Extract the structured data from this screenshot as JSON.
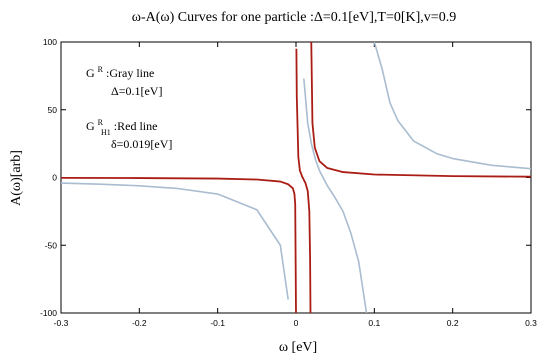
{
  "chart_data": {
    "type": "line",
    "title": "ω-A(ω) Curves for one particle :Δ=0.1[eV],T=0[K],v=0.9",
    "xlabel": "ω [eV]",
    "ylabel": "A(ω)[arb]",
    "xlim": [
      -0.3,
      0.3
    ],
    "ylim": [
      -100,
      100
    ],
    "x_ticks": [
      -0.3,
      -0.2,
      -0.1,
      0,
      0.1,
      0.2,
      0.3
    ],
    "x_tick_labels": [
      "-0.3",
      "-0.2",
      "-0.1",
      "0",
      "0.1",
      "0.2",
      "0.3"
    ],
    "y_ticks": [
      -100,
      -50,
      0,
      50,
      100
    ],
    "y_tick_labels": [
      "-100",
      "-50",
      "0",
      "50",
      "100"
    ],
    "grid": false,
    "annotations": {
      "gray_label_main": "G",
      "gray_label_sup": "R",
      "gray_label_rest": ":Gray line",
      "gray_param": "Δ=0.1[eV]",
      "red_label_main": "G",
      "red_label_sup": "R",
      "red_label_sub": "H1",
      "red_label_rest": ":Red line",
      "red_param": "δ=0.019[eV]"
    },
    "series": [
      {
        "color": "#a9bcd0",
        "points": [
          [
            -0.3,
            -4.1
          ],
          [
            -0.25,
            -4.9
          ],
          [
            -0.2,
            -6.1
          ],
          [
            -0.15,
            -8.2
          ],
          [
            -0.1,
            -12.2
          ],
          [
            -0.05,
            -23.8
          ],
          [
            -0.02,
            -50.0
          ],
          [
            -0.01,
            -90.0
          ],
          [
            0.01,
            73.0
          ],
          [
            0.015,
            40.0
          ],
          [
            0.02,
            24.0
          ],
          [
            0.025,
            13.0
          ],
          [
            0.03,
            5.0
          ],
          [
            0.04,
            -6.0
          ],
          [
            0.05,
            -15.0
          ],
          [
            0.06,
            -25.0
          ],
          [
            0.07,
            -41.0
          ],
          [
            0.08,
            -62.0
          ],
          [
            0.09,
            -100.0
          ],
          [
            0.1,
            100.0
          ],
          [
            0.11,
            80.0
          ],
          [
            0.12,
            55.0
          ],
          [
            0.13,
            42.0
          ],
          [
            0.15,
            27.0
          ],
          [
            0.18,
            17.5
          ],
          [
            0.2,
            14.0
          ],
          [
            0.25,
            9.0
          ],
          [
            0.3,
            6.5
          ]
        ]
      },
      {
        "color": "#aa1d14",
        "points": [
          [
            -0.3,
            -0.3
          ],
          [
            -0.2,
            -0.4
          ],
          [
            -0.1,
            -0.8
          ],
          [
            -0.05,
            -1.5
          ],
          [
            -0.02,
            -3.0
          ],
          [
            -0.01,
            -5.0
          ],
          [
            -0.004,
            -8.0
          ],
          [
            -0.002,
            -12.0
          ],
          [
            -0.001,
            -20.0
          ],
          [
            0.0,
            -100.0
          ],
          [
            0.0005,
            95.0
          ],
          [
            0.001,
            60.0
          ],
          [
            0.003,
            15.0
          ],
          [
            0.005,
            5.0
          ],
          [
            0.008,
            0.5
          ],
          [
            0.012,
            -4.0
          ],
          [
            0.015,
            -10.0
          ],
          [
            0.017,
            -25.0
          ],
          [
            0.018,
            -60.0
          ],
          [
            0.0185,
            -100.0
          ],
          [
            0.0195,
            100.0
          ],
          [
            0.021,
            40.0
          ],
          [
            0.024,
            22.0
          ],
          [
            0.03,
            12.0
          ],
          [
            0.04,
            7.0
          ],
          [
            0.06,
            4.0
          ],
          [
            0.1,
            2.2
          ],
          [
            0.2,
            1.0
          ],
          [
            0.3,
            0.6
          ]
        ]
      }
    ]
  }
}
